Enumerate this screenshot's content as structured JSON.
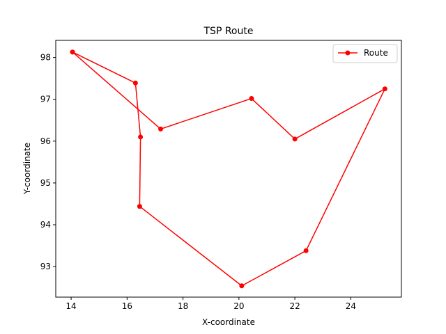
{
  "chart_data": {
    "type": "line",
    "title": "TSP Route",
    "xlabel": "X-coordinate",
    "ylabel": "Y-coordinate",
    "xlim": [
      13.45,
      25.81
    ],
    "ylim": [
      92.27,
      98.41
    ],
    "xticks": [
      14,
      16,
      18,
      20,
      22,
      24
    ],
    "yticks": [
      93,
      94,
      95,
      96,
      97,
      98
    ],
    "grid": false,
    "legend_position": "top-right",
    "series": [
      {
        "name": "Route",
        "color": "#ff0000",
        "marker": "circle",
        "points": [
          {
            "x": 14.05,
            "y": 98.13
          },
          {
            "x": 17.2,
            "y": 96.29
          },
          {
            "x": 20.45,
            "y": 97.02
          },
          {
            "x": 22.0,
            "y": 96.05
          },
          {
            "x": 25.22,
            "y": 97.25
          },
          {
            "x": 22.4,
            "y": 93.38
          },
          {
            "x": 20.1,
            "y": 92.54
          },
          {
            "x": 16.45,
            "y": 94.44
          },
          {
            "x": 16.48,
            "y": 96.1
          },
          {
            "x": 16.3,
            "y": 97.39
          },
          {
            "x": 14.05,
            "y": 98.13
          }
        ]
      }
    ]
  }
}
